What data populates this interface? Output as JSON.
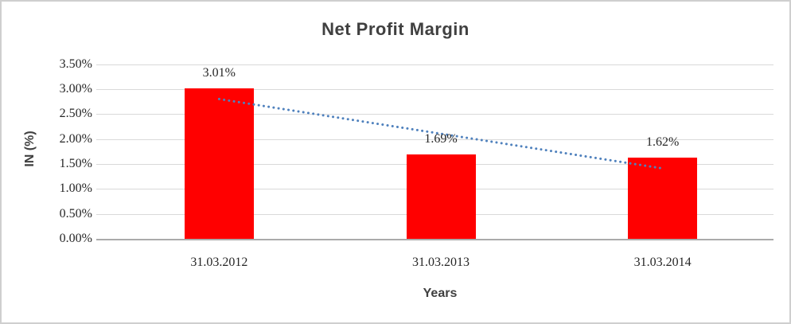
{
  "chart_data": {
    "type": "bar",
    "title": "Net Profit Margin",
    "xlabel": "Years",
    "ylabel": "IN (%)",
    "categories": [
      "31.03.2012",
      "31.03.2013",
      "31.03.2014"
    ],
    "values": [
      3.01,
      1.69,
      1.62
    ],
    "data_labels": [
      "3.01%",
      "1.69%",
      "1.62%"
    ],
    "ylim": [
      0,
      3.5
    ],
    "ytick_step": 0.5,
    "ytick_labels": [
      "0.00%",
      "0.50%",
      "1.00%",
      "1.50%",
      "2.00%",
      "2.50%",
      "3.00%",
      "3.50%"
    ],
    "grid": true,
    "legend": "none",
    "bar_color": "#FF0000",
    "trendline": {
      "type": "linear",
      "style": "dotted",
      "color": "#4F81BD",
      "endpoints": [
        2.8,
        1.41
      ]
    }
  }
}
